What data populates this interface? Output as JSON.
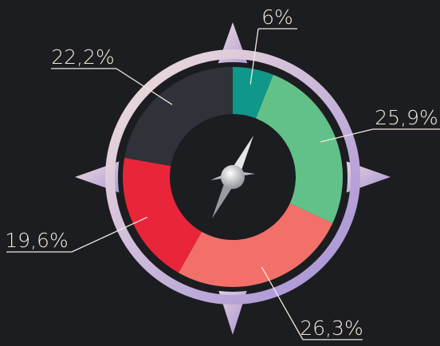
{
  "chart_data": {
    "type": "donut",
    "values": [
      6,
      25.9,
      26.3,
      19.6,
      22.2
    ],
    "value_labels": [
      "6%",
      "25,9%",
      "26,3%",
      "19,6%",
      "22,2%"
    ],
    "colors": [
      "#0f978a",
      "#62c189",
      "#f27069",
      "#e9253a",
      "#2f3238"
    ]
  }
}
